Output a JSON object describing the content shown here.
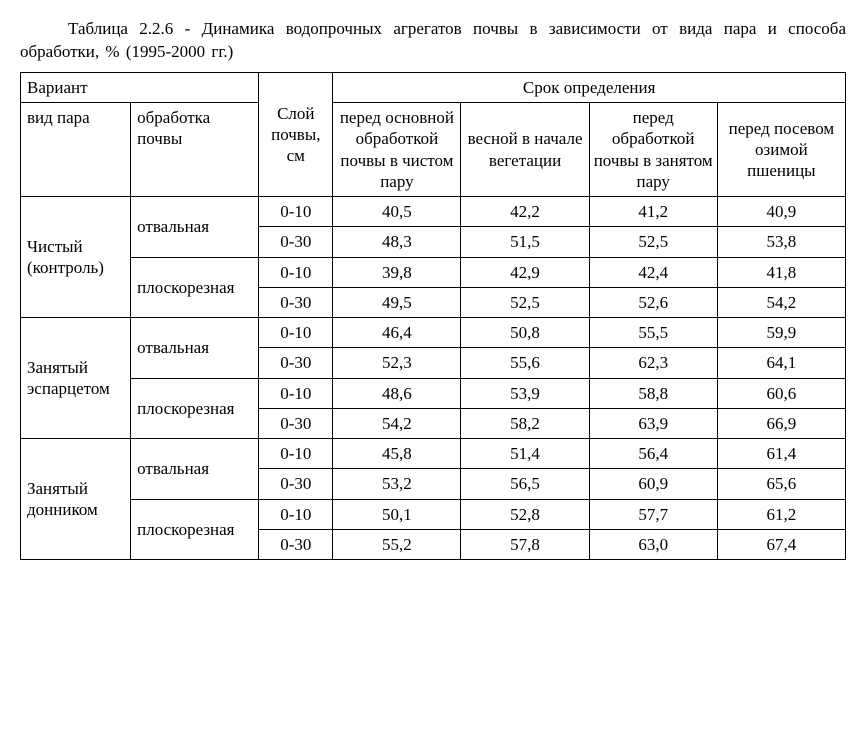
{
  "caption": "Таблица 2.2.6 - Динамика водопрочных агрегатов почвы в зависимости от вида пара и способа обработки, % (1995-2000 гг.)",
  "header": {
    "variant": "Вариант",
    "layer": "Слой почвы, см",
    "period": "Срок определения",
    "fallow_kind": "вид пара",
    "tillage": "обработка почвы",
    "s1": "перед основной обработкой почвы в чистом пару",
    "s2": "весной в начале вегетации",
    "s3": "перед обработкой почвы в занятом пару",
    "s4": "перед посевом озимой пшеницы"
  },
  "fallows": [
    {
      "name": "Чистый (контроль)",
      "tillages": [
        {
          "name": "отвальная",
          "rows": [
            {
              "layer": "0-10",
              "v": [
                "40,5",
                "42,2",
                "41,2",
                "40,9"
              ]
            },
            {
              "layer": "0-30",
              "v": [
                "48,3",
                "51,5",
                "52,5",
                "53,8"
              ]
            }
          ]
        },
        {
          "name": "плоскорезная",
          "rows": [
            {
              "layer": "0-10",
              "v": [
                "39,8",
                "42,9",
                "42,4",
                "41,8"
              ]
            },
            {
              "layer": "0-30",
              "v": [
                "49,5",
                "52,5",
                "52,6",
                "54,2"
              ]
            }
          ]
        }
      ]
    },
    {
      "name": "Занятый эспарцетом",
      "tillages": [
        {
          "name": "отвальная",
          "rows": [
            {
              "layer": "0-10",
              "v": [
                "46,4",
                "50,8",
                "55,5",
                "59,9"
              ]
            },
            {
              "layer": "0-30",
              "v": [
                "52,3",
                "55,6",
                "62,3",
                "64,1"
              ]
            }
          ]
        },
        {
          "name": "плоскорезная",
          "rows": [
            {
              "layer": "0-10",
              "v": [
                "48,6",
                "53,9",
                "58,8",
                "60,6"
              ]
            },
            {
              "layer": "0-30",
              "v": [
                "54,2",
                "58,2",
                "63,9",
                "66,9"
              ]
            }
          ]
        }
      ]
    },
    {
      "name": "Занятый донником",
      "tillages": [
        {
          "name": "отвальная",
          "rows": [
            {
              "layer": "0-10",
              "v": [
                "45,8",
                "51,4",
                "56,4",
                "61,4"
              ]
            },
            {
              "layer": "0-30",
              "v": [
                "53,2",
                "56,5",
                "60,9",
                "65,6"
              ]
            }
          ]
        },
        {
          "name": "плоскорезная",
          "rows": [
            {
              "layer": "0-10",
              "v": [
                "50,1",
                "52,8",
                "57,7",
                "61,2"
              ]
            },
            {
              "layer": "0-30",
              "v": [
                "55,2",
                "57,8",
                "63,0",
                "67,4"
              ]
            }
          ]
        }
      ]
    }
  ]
}
